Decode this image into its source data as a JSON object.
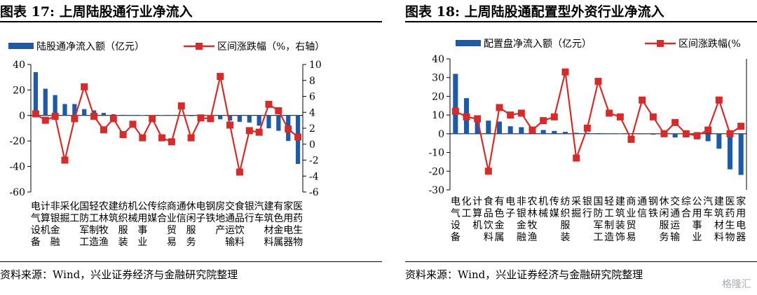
{
  "left": {
    "title": "图表 17:  上周陆股通行业净流入",
    "source": "资料来源：Wind，兴业证券经济与金融研究院整理",
    "chart_data": {
      "type": "bar+line",
      "legend": [
        "陆股通净流入额（亿元）",
        "区间涨跌幅（%，右轴）"
      ],
      "categories": [
        "电气设备",
        "计算机",
        "非银金融",
        "采掘",
        "化工",
        "国防军工",
        "轻工制造",
        "农林牧渔",
        "建筑",
        "纺织服装",
        "机械",
        "公用事业",
        "传媒",
        "综合",
        "商业贸易",
        "通信",
        "休闲服务",
        "电子",
        "钢铁",
        "房地产",
        "交通运输",
        "食品饮料",
        "银行",
        "汽车",
        "建筑材料",
        "有色金属",
        "家用电器",
        "医药生物"
      ],
      "ylim_left": [
        -60,
        40
      ],
      "yticks_left": [
        40,
        20,
        0,
        -20,
        -40,
        -60
      ],
      "ylim_right": [
        -6,
        10
      ],
      "yticks_right": [
        10,
        8,
        6,
        4,
        2,
        0,
        -2,
        -4,
        -6
      ],
      "series": [
        {
          "name": "陆股通净流入额（亿元）",
          "axis": "left",
          "color": "#1f5aa6",
          "values": [
            34,
            21,
            16,
            9,
            9,
            5,
            4,
            2,
            1,
            0.5,
            0.3,
            0.2,
            0.2,
            0.1,
            0.1,
            -0.3,
            -0.5,
            -1.5,
            -2,
            -3,
            -4,
            -5,
            -5.5,
            -8,
            -10,
            -12,
            -20,
            -38
          ]
        },
        {
          "name": "区间涨跌幅（%，右轴）",
          "axis": "right",
          "color": "#d62b2b",
          "values": [
            3.8,
            3.0,
            3.5,
            -2.0,
            3.2,
            7.2,
            3.5,
            1.8,
            3.2,
            1.2,
            2.5,
            0.8,
            3.2,
            0.8,
            0.3,
            4.8,
            0.8,
            3.3,
            3.2,
            8.5,
            2.4,
            -3.5,
            1.7,
            1.5,
            5.0,
            4.2,
            1.9,
            0.9
          ]
        }
      ]
    }
  },
  "right": {
    "title": "图表 18:  上周陆股通配置型外资行业净流入",
    "source": "资料来源：Wind，兴业证券经济与金融研究院整理",
    "chart_data": {
      "type": "bar+line",
      "legend": [
        "配置盘净流入额（亿元）",
        "区间涨跌幅(%"
      ],
      "categories": [
        "电气设备",
        "化工",
        "计算机",
        "食品饮料",
        "有色金属",
        "电子",
        "非银金融",
        "农林牧渔",
        "机械",
        "传媒",
        "纺织服装",
        "采掘",
        "银行",
        "国防军工",
        "轻工制造",
        "建筑装饰",
        "商业贸易",
        "通信",
        "钢铁",
        "休闲服务",
        "交通运输",
        "综合",
        "公用事业",
        "汽车",
        "建筑材料",
        "医药生物",
        "家用电器"
      ],
      "ylim_left": [
        -30,
        40
      ],
      "yticks_left": [
        40,
        30,
        20,
        10,
        0,
        -10,
        -20,
        -30
      ],
      "series": [
        {
          "name": "配置盘净流入额（亿元）",
          "axis": "left",
          "color": "#1f5aa6",
          "values": [
            32,
            19,
            9,
            7,
            6.5,
            4,
            3.5,
            3,
            2,
            1.5,
            1,
            0.5,
            0.5,
            0.3,
            0.2,
            0.1,
            -0.2,
            -0.3,
            -0.5,
            -1.5,
            -2,
            -2,
            -3,
            -4,
            -8,
            -19,
            -22
          ]
        },
        {
          "name": "区间涨跌幅(%",
          "axis": "right",
          "color": "#d62b2b",
          "plot_values_left_units": [
            12,
            9,
            8,
            -20,
            14,
            10,
            11,
            2,
            7,
            9,
            33,
            -13,
            3,
            28,
            11,
            9,
            -3,
            18,
            9,
            0,
            6,
            0,
            -1,
            2,
            18,
            0,
            4
          ]
        }
      ]
    }
  },
  "watermark": "格隆汇"
}
